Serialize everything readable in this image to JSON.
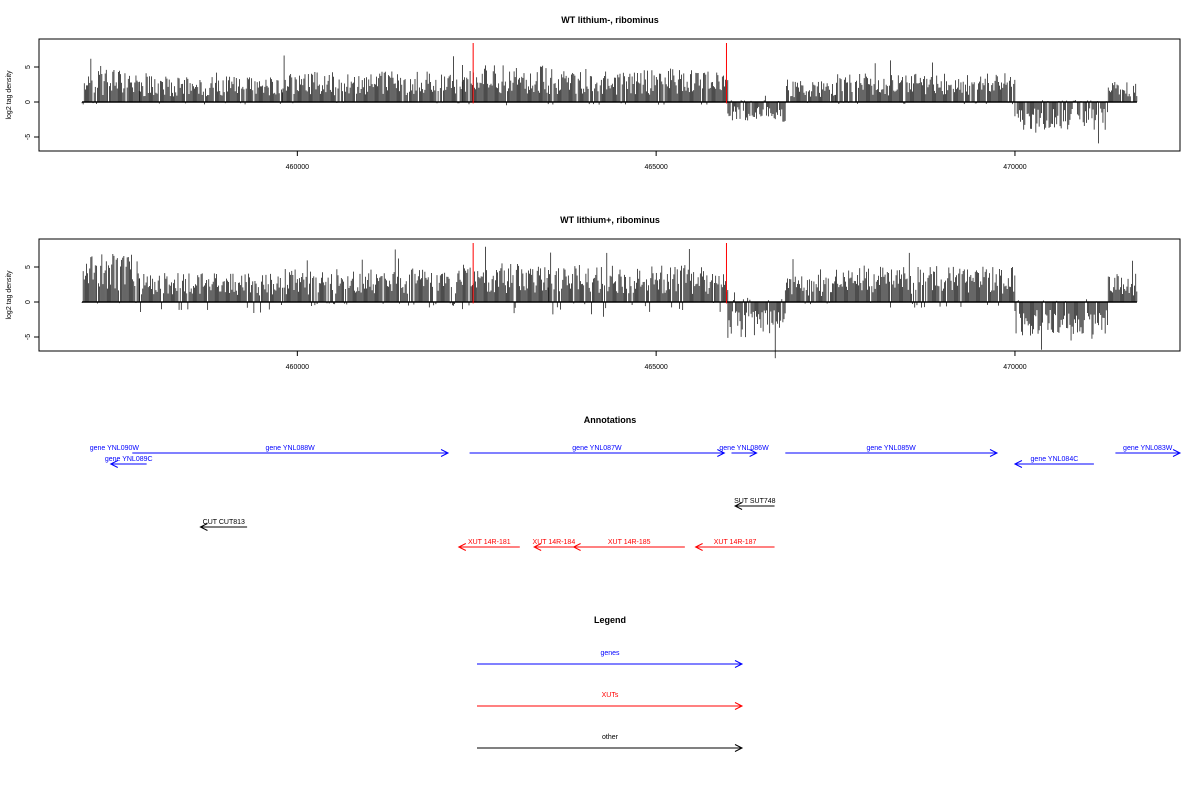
{
  "colors": {
    "genes": "#0000ff",
    "xuts": "#ff0000",
    "other": "#000000",
    "marker": "#ff0000",
    "signal": "#000000"
  },
  "chart_data": [
    {
      "type": "bar",
      "title": "WT lithium-, ribominus",
      "ylabel": "log2 tag density",
      "xlim": [
        456400,
        472300
      ],
      "ylim": [
        -7,
        9
      ],
      "x_ticks": [
        "460000",
        "465000",
        "470000"
      ],
      "y_ticks": [
        "-5",
        "0",
        "5"
      ],
      "markers_x": [
        462450,
        465980
      ],
      "profile": [
        {
          "x0": 457000,
          "x1": 457800,
          "lo": -0.4,
          "hi": 4.0
        },
        {
          "x0": 457800,
          "x1": 459800,
          "lo": -0.4,
          "hi": 3.2
        },
        {
          "x0": 459800,
          "x1": 462300,
          "lo": -0.2,
          "hi": 3.8
        },
        {
          "x0": 462300,
          "x1": 463500,
          "lo": -0.6,
          "hi": 4.6
        },
        {
          "x0": 463500,
          "x1": 466000,
          "lo": -0.4,
          "hi": 4.2
        },
        {
          "x0": 466000,
          "x1": 466800,
          "lo": -2.5,
          "hi": 1.0
        },
        {
          "x0": 466800,
          "x1": 467500,
          "lo": -0.2,
          "hi": 2.8
        },
        {
          "x0": 467500,
          "x1": 470000,
          "lo": -0.3,
          "hi": 3.6
        },
        {
          "x0": 470000,
          "x1": 471300,
          "lo": -3.5,
          "hi": 0.3
        },
        {
          "x0": 471300,
          "x1": 471700,
          "lo": -0.1,
          "hi": 2.6
        }
      ]
    },
    {
      "type": "bar",
      "title": "WT lithium+, ribominus",
      "ylabel": "log2 tag density",
      "xlim": [
        456400,
        472300
      ],
      "ylim": [
        -7,
        9
      ],
      "x_ticks": [
        "460000",
        "465000",
        "470000"
      ],
      "y_ticks": [
        "-5",
        "0",
        "5"
      ],
      "markers_x": [
        462450,
        465980
      ],
      "profile": [
        {
          "x0": 457000,
          "x1": 457800,
          "lo": -0.6,
          "hi": 6.0
        },
        {
          "x0": 457800,
          "x1": 459800,
          "lo": -1.5,
          "hi": 3.6
        },
        {
          "x0": 459800,
          "x1": 462300,
          "lo": -0.6,
          "hi": 4.2
        },
        {
          "x0": 462300,
          "x1": 463500,
          "lo": -2.4,
          "hi": 4.8
        },
        {
          "x0": 463500,
          "x1": 466000,
          "lo": -2.2,
          "hi": 4.6
        },
        {
          "x0": 466000,
          "x1": 466800,
          "lo": -4.5,
          "hi": 1.5
        },
        {
          "x0": 466800,
          "x1": 467500,
          "lo": -0.4,
          "hi": 3.4
        },
        {
          "x0": 467500,
          "x1": 470000,
          "lo": -0.8,
          "hi": 4.4
        },
        {
          "x0": 470000,
          "x1": 471300,
          "lo": -4.2,
          "hi": 0.6
        },
        {
          "x0": 471300,
          "x1": 471700,
          "lo": -0.2,
          "hi": 3.6
        }
      ]
    }
  ],
  "annotations": {
    "title": "Annotations",
    "xlim": [
      456400,
      472300
    ],
    "features": [
      {
        "label": "gene YNL090W",
        "start": 457000,
        "end": 457900,
        "strand": "+",
        "kind": "genes",
        "row": 0,
        "arrow": false
      },
      {
        "label": "gene YNL089C",
        "start": 457400,
        "end": 457900,
        "strand": "-",
        "kind": "genes",
        "row": 1,
        "arrow": true
      },
      {
        "label": "gene YNL088W",
        "start": 457700,
        "end": 462100,
        "strand": "+",
        "kind": "genes",
        "row": 0,
        "arrow": true
      },
      {
        "label": "gene YNL087W",
        "start": 462400,
        "end": 465950,
        "strand": "+",
        "kind": "genes",
        "row": 0,
        "arrow": true
      },
      {
        "label": "gene YNL086W",
        "start": 466050,
        "end": 466400,
        "strand": "+",
        "kind": "genes",
        "row": 0,
        "arrow": true
      },
      {
        "label": "gene YNL085W",
        "start": 466800,
        "end": 469750,
        "strand": "+",
        "kind": "genes",
        "row": 0,
        "arrow": true
      },
      {
        "label": "gene YNL084C",
        "start": 470000,
        "end": 471100,
        "strand": "-",
        "kind": "genes",
        "row": 1,
        "arrow": true
      },
      {
        "label": "gene YNL083W",
        "start": 471400,
        "end": 472300,
        "strand": "+",
        "kind": "genes",
        "row": 0,
        "arrow": true
      },
      {
        "label": "SUT SUT748",
        "start": 466100,
        "end": 466650,
        "strand": "-",
        "kind": "other",
        "row": 2,
        "arrow": true
      },
      {
        "label": "CUT CUT813",
        "start": 458650,
        "end": 459300,
        "strand": "-",
        "kind": "other",
        "row": 3,
        "arrow": true
      },
      {
        "label": "XUT 14R-181",
        "start": 462250,
        "end": 463100,
        "strand": "-",
        "kind": "xuts",
        "row": 4,
        "arrow": true
      },
      {
        "label": "XUT 14R-184",
        "start": 463300,
        "end": 463850,
        "strand": "-",
        "kind": "xuts",
        "row": 4,
        "arrow": true
      },
      {
        "label": "XUT 14R-185",
        "start": 463850,
        "end": 465400,
        "strand": "-",
        "kind": "xuts",
        "row": 4,
        "arrow": true
      },
      {
        "label": "XUT 14R-187",
        "start": 465550,
        "end": 466650,
        "strand": "-",
        "kind": "xuts",
        "row": 4,
        "arrow": true
      }
    ]
  },
  "legend": {
    "title": "Legend",
    "items": [
      {
        "label": "genes",
        "kind": "genes"
      },
      {
        "label": "XUTs",
        "kind": "xuts"
      },
      {
        "label": "other",
        "kind": "other"
      }
    ]
  }
}
